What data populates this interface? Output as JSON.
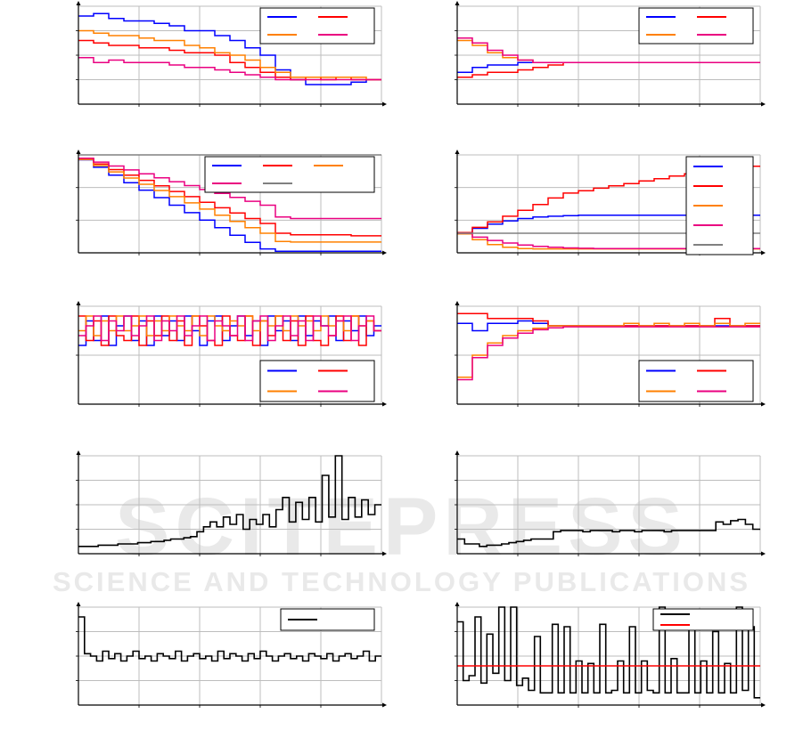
{
  "watermark": {
    "line1": "SCITEPRESS",
    "line2": "SCIENCE AND TECHNOLOGY PUBLICATIONS"
  },
  "chart_data": [
    {
      "type": "line",
      "step": true,
      "xlim": [
        0,
        100
      ],
      "ylim": [
        0,
        4
      ],
      "grid": true,
      "legend": "top-right",
      "series": [
        {
          "color": "#0000ff",
          "values": [
            3.6,
            3.7,
            3.5,
            3.4,
            3.4,
            3.3,
            3.2,
            3.0,
            3.0,
            2.8,
            2.6,
            2.3,
            2.0,
            1.4,
            1.0,
            0.8,
            0.8,
            0.8,
            0.9,
            1.0
          ]
        },
        {
          "color": "#ff0000",
          "values": [
            2.6,
            2.5,
            2.4,
            2.4,
            2.3,
            2.3,
            2.2,
            2.1,
            2.1,
            2.0,
            1.7,
            1.5,
            1.3,
            1.1,
            1.0,
            1.1,
            1.0,
            1.1,
            1.0,
            1.0
          ]
        },
        {
          "color": "#ff8000",
          "values": [
            3.0,
            2.9,
            2.8,
            2.8,
            2.7,
            2.6,
            2.6,
            2.4,
            2.3,
            2.1,
            2.0,
            1.8,
            1.5,
            1.3,
            1.1,
            1.1,
            1.1,
            1.1,
            1.1,
            1.0
          ]
        },
        {
          "color": "#ea0080",
          "values": [
            1.9,
            1.7,
            1.8,
            1.7,
            1.7,
            1.7,
            1.6,
            1.5,
            1.5,
            1.4,
            1.3,
            1.2,
            1.1,
            1.0,
            1.0,
            1.0,
            1.0,
            1.0,
            1.0,
            1.0
          ]
        }
      ]
    },
    {
      "type": "line",
      "step": true,
      "xlim": [
        0,
        100
      ],
      "ylim": [
        0,
        4
      ],
      "grid": true,
      "legend": "top-right",
      "series": [
        {
          "color": "#0000ff",
          "values": [
            1.3,
            1.5,
            1.6,
            1.6,
            1.7,
            1.7,
            1.7,
            1.7,
            1.7,
            1.7,
            1.7,
            1.7,
            1.7,
            1.7,
            1.7,
            1.7,
            1.7,
            1.7,
            1.7,
            1.7
          ]
        },
        {
          "color": "#ff0000",
          "values": [
            1.1,
            1.2,
            1.3,
            1.3,
            1.4,
            1.5,
            1.6,
            1.7,
            1.7,
            1.7,
            1.7,
            1.7,
            1.7,
            1.7,
            1.7,
            1.7,
            1.7,
            1.7,
            1.7,
            1.7
          ]
        },
        {
          "color": "#ff8000",
          "values": [
            2.6,
            2.4,
            2.1,
            1.9,
            1.8,
            1.7,
            1.7,
            1.7,
            1.7,
            1.7,
            1.7,
            1.7,
            1.7,
            1.7,
            1.7,
            1.7,
            1.7,
            1.7,
            1.7,
            1.7
          ]
        },
        {
          "color": "#ea0080",
          "values": [
            2.7,
            2.5,
            2.2,
            2.0,
            1.8,
            1.7,
            1.7,
            1.7,
            1.7,
            1.7,
            1.7,
            1.7,
            1.7,
            1.7,
            1.7,
            1.7,
            1.7,
            1.7,
            1.7,
            1.7
          ]
        }
      ]
    },
    {
      "type": "line",
      "step": true,
      "xlim": [
        0,
        100
      ],
      "ylim": [
        0,
        3
      ],
      "grid": true,
      "legend": "top-right",
      "series": [
        {
          "color": "#0000ff",
          "values": [
            2.85,
            2.62,
            2.38,
            2.15,
            1.92,
            1.69,
            1.46,
            1.23,
            1.0,
            0.77,
            0.54,
            0.32,
            0.12,
            0.05,
            0.05,
            0.05,
            0.05,
            0.05,
            0.05,
            0.05
          ]
        },
        {
          "color": "#ff0000",
          "values": [
            2.88,
            2.72,
            2.55,
            2.38,
            2.22,
            2.05,
            1.88,
            1.72,
            1.55,
            1.38,
            1.22,
            1.05,
            0.9,
            0.6,
            0.55,
            0.55,
            0.55,
            0.55,
            0.52,
            0.52
          ]
        },
        {
          "color": "#ff8000",
          "values": [
            2.86,
            2.67,
            2.48,
            2.29,
            2.1,
            1.91,
            1.72,
            1.53,
            1.34,
            1.15,
            0.96,
            0.77,
            0.6,
            0.35,
            0.33,
            0.33,
            0.33,
            0.33,
            0.33,
            0.33
          ]
        },
        {
          "color": "#ea0080",
          "values": [
            2.9,
            2.78,
            2.66,
            2.54,
            2.42,
            2.3,
            2.18,
            2.06,
            1.94,
            1.82,
            1.7,
            1.58,
            1.46,
            1.1,
            1.05,
            1.05,
            1.05,
            1.05,
            1.05,
            1.05
          ]
        },
        {
          "color": "#808080",
          "values": [
            3.0,
            3.0,
            3.0,
            3.0,
            3.0,
            3.0,
            3.0,
            3.0,
            3.0,
            3.0,
            3.0,
            3.0,
            3.0,
            3.0,
            3.0,
            3.0,
            3.0,
            3.0,
            3.0,
            3.0
          ]
        }
      ]
    },
    {
      "type": "line",
      "step": true,
      "xlim": [
        0,
        100
      ],
      "ylim": [
        0,
        3
      ],
      "grid": true,
      "legend": "top-right",
      "series": [
        {
          "color": "#0000ff",
          "values": [
            0.62,
            0.75,
            0.88,
            0.98,
            1.05,
            1.1,
            1.12,
            1.14,
            1.15,
            1.15,
            1.15,
            1.15,
            1.15,
            1.15,
            1.15,
            1.15,
            1.15,
            1.15,
            1.15,
            1.15
          ]
        },
        {
          "color": "#ff0000",
          "values": [
            0.62,
            0.78,
            0.95,
            1.12,
            1.3,
            1.48,
            1.68,
            1.83,
            1.9,
            1.98,
            2.05,
            2.12,
            2.2,
            2.27,
            2.35,
            2.42,
            2.5,
            2.57,
            2.62,
            2.65
          ]
        },
        {
          "color": "#ff8000",
          "values": [
            0.58,
            0.4,
            0.25,
            0.17,
            0.13,
            0.12,
            0.12,
            0.12,
            0.12,
            0.12,
            0.12,
            0.12,
            0.12,
            0.12,
            0.12,
            0.12,
            0.12,
            0.12,
            0.12,
            0.12
          ]
        },
        {
          "color": "#ea0080",
          "values": [
            0.6,
            0.48,
            0.38,
            0.3,
            0.24,
            0.2,
            0.17,
            0.15,
            0.14,
            0.13,
            0.13,
            0.13,
            0.13,
            0.13,
            0.13,
            0.13,
            0.13,
            0.13,
            0.13,
            0.13
          ]
        },
        {
          "color": "#808080",
          "values": [
            0.6,
            0.6,
            0.6,
            0.6,
            0.6,
            0.6,
            0.6,
            0.6,
            0.6,
            0.6,
            0.6,
            0.6,
            0.6,
            0.6,
            0.6,
            0.6,
            0.6,
            0.6,
            0.6,
            0.6
          ]
        }
      ]
    },
    {
      "type": "line",
      "step": true,
      "xlim": [
        0,
        100
      ],
      "ylim": [
        0,
        2
      ],
      "grid": true,
      "legend": "bottom-right",
      "series": [
        {
          "color": "#0000ff",
          "values": [
            1.2,
            1.7,
            1.3,
            1.8,
            1.2,
            1.6,
            1.8,
            1.3,
            1.7,
            1.2,
            1.8,
            1.4,
            1.7,
            1.3,
            1.8,
            1.5,
            1.2,
            1.7,
            1.8,
            1.3,
            1.6,
            1.8,
            1.4,
            1.7,
            1.2,
            1.8,
            1.5,
            1.7,
            1.3,
            1.8,
            1.4,
            1.7,
            1.6,
            1.8,
            1.3,
            1.7,
            1.5,
            1.8,
            1.4,
            1.6
          ]
        },
        {
          "color": "#ff0000",
          "values": [
            1.8,
            1.3,
            1.7,
            1.2,
            1.8,
            1.4,
            1.3,
            1.8,
            1.2,
            1.7,
            1.4,
            1.8,
            1.3,
            1.7,
            1.2,
            1.8,
            1.6,
            1.3,
            1.2,
            1.8,
            1.4,
            1.3,
            1.8,
            1.2,
            1.7,
            1.4,
            1.8,
            1.3,
            1.7,
            1.2,
            1.8,
            1.3,
            1.2,
            1.4,
            1.8,
            1.3,
            1.8,
            1.2,
            1.7,
            1.5
          ]
        },
        {
          "color": "#ff8000",
          "values": [
            1.5,
            1.8,
            1.4,
            1.7,
            1.5,
            1.8,
            1.5,
            1.6,
            1.8,
            1.4,
            1.7,
            1.5,
            1.8,
            1.6,
            1.5,
            1.8,
            1.4,
            1.8,
            1.6,
            1.5,
            1.7,
            1.6,
            1.8,
            1.5,
            1.7,
            1.6,
            1.8,
            1.5,
            1.8,
            1.6,
            1.7,
            1.5,
            1.8,
            1.6,
            1.7,
            1.5,
            1.8,
            1.6,
            1.7,
            1.5
          ]
        },
        {
          "color": "#ea0080",
          "values": [
            1.4,
            1.6,
            1.8,
            1.3,
            1.7,
            1.5,
            1.8,
            1.4,
            1.6,
            1.8,
            1.3,
            1.7,
            1.5,
            1.8,
            1.4,
            1.6,
            1.8,
            1.3,
            1.7,
            1.6,
            1.4,
            1.8,
            1.3,
            1.7,
            1.8,
            1.3,
            1.6,
            1.8,
            1.4,
            1.7,
            1.3,
            1.8,
            1.6,
            1.4,
            1.7,
            1.8,
            1.3,
            1.6,
            1.8,
            1.5
          ]
        }
      ]
    },
    {
      "type": "line",
      "step": true,
      "xlim": [
        0,
        100
      ],
      "ylim": [
        0,
        2
      ],
      "grid": true,
      "legend": "bottom-right",
      "series": [
        {
          "color": "#0000ff",
          "values": [
            1.65,
            1.5,
            1.65,
            1.65,
            1.7,
            1.65,
            1.6,
            1.6,
            1.6,
            1.6,
            1.6,
            1.6,
            1.6,
            1.6,
            1.6,
            1.6,
            1.6,
            1.6,
            1.6,
            1.6
          ]
        },
        {
          "color": "#ff0000",
          "values": [
            1.85,
            1.85,
            1.75,
            1.75,
            1.75,
            1.7,
            1.6,
            1.6,
            1.6,
            1.6,
            1.6,
            1.6,
            1.6,
            1.6,
            1.6,
            1.6,
            1.6,
            1.75,
            1.6,
            1.6
          ]
        },
        {
          "color": "#ff8000",
          "values": [
            0.55,
            1.0,
            1.25,
            1.4,
            1.5,
            1.55,
            1.6,
            1.6,
            1.6,
            1.6,
            1.6,
            1.65,
            1.6,
            1.65,
            1.6,
            1.65,
            1.6,
            1.65,
            1.6,
            1.65
          ]
        },
        {
          "color": "#ea0080",
          "values": [
            0.5,
            0.95,
            1.2,
            1.35,
            1.45,
            1.52,
            1.56,
            1.58,
            1.58,
            1.58,
            1.58,
            1.58,
            1.58,
            1.58,
            1.58,
            1.58,
            1.58,
            1.58,
            1.58,
            1.58
          ]
        }
      ]
    },
    {
      "type": "line",
      "step": true,
      "xlim": [
        0,
        100
      ],
      "ylim": [
        0,
        4
      ],
      "grid": true,
      "series": [
        {
          "color": "#000000",
          "values": [
            0.3,
            0.3,
            0.3,
            0.35,
            0.35,
            0.35,
            0.4,
            0.4,
            0.4,
            0.45,
            0.45,
            0.5,
            0.5,
            0.55,
            0.6,
            0.6,
            0.65,
            0.7,
            0.9,
            1.1,
            1.3,
            1.1,
            1.5,
            1.2,
            1.6,
            1.0,
            1.4,
            1.2,
            1.6,
            1.1,
            1.8,
            2.3,
            1.3,
            2.1,
            1.4,
            2.3,
            1.3,
            3.2,
            1.5,
            4.0,
            1.4,
            2.3,
            1.5,
            2.2,
            1.6,
            2.0
          ]
        }
      ]
    },
    {
      "type": "line",
      "step": true,
      "xlim": [
        0,
        100
      ],
      "ylim": [
        0,
        4
      ],
      "grid": true,
      "series": [
        {
          "color": "#000000",
          "values": [
            0.6,
            0.4,
            0.4,
            0.3,
            0.35,
            0.35,
            0.4,
            0.45,
            0.5,
            0.55,
            0.6,
            0.6,
            0.6,
            0.9,
            0.95,
            0.95,
            0.95,
            0.9,
            0.95,
            0.95,
            0.95,
            0.9,
            0.95,
            0.95,
            0.9,
            0.95,
            0.95,
            0.95,
            0.9,
            0.95,
            0.95,
            0.95,
            0.95,
            0.95,
            0.95,
            1.3,
            1.2,
            1.35,
            1.4,
            1.2,
            1.0
          ]
        }
      ]
    },
    {
      "type": "line",
      "step": true,
      "xlim": [
        0,
        100
      ],
      "ylim": [
        0,
        4
      ],
      "grid": true,
      "legend": "top-right",
      "series": [
        {
          "color": "#000000",
          "values": [
            3.6,
            2.1,
            2.0,
            1.8,
            2.2,
            1.9,
            2.1,
            1.8,
            2.0,
            2.2,
            1.9,
            2.0,
            1.8,
            2.1,
            2.0,
            1.9,
            2.2,
            1.8,
            2.0,
            2.1,
            1.9,
            2.0,
            1.8,
            2.2,
            1.9,
            2.1,
            2.0,
            1.8,
            2.1,
            1.9,
            2.2,
            2.0,
            1.8,
            2.0,
            2.1,
            1.9,
            2.0,
            1.8,
            2.1,
            2.0,
            1.9,
            2.1,
            1.8,
            2.0,
            2.1,
            1.9,
            2.0,
            2.2,
            1.8,
            2.0
          ]
        }
      ]
    },
    {
      "type": "line",
      "step": true,
      "xlim": [
        0,
        100
      ],
      "ylim": [
        0,
        4
      ],
      "grid": true,
      "legend": "top-right",
      "series": [
        {
          "color": "#000000",
          "values": [
            3.4,
            1.0,
            1.2,
            3.6,
            0.9,
            2.9,
            1.3,
            4.0,
            1.0,
            4.0,
            0.8,
            1.1,
            0.6,
            2.8,
            0.5,
            0.5,
            3.3,
            0.5,
            3.2,
            0.5,
            1.8,
            0.5,
            1.7,
            0.5,
            3.3,
            0.5,
            0.6,
            1.8,
            0.5,
            3.2,
            0.5,
            1.8,
            0.6,
            0.5,
            4.0,
            0.5,
            1.9,
            0.5,
            0.5,
            3.2,
            0.5,
            1.8,
            0.5,
            3.0,
            0.5,
            1.7,
            0.5,
            4.0,
            0.6,
            3.2,
            0.3
          ]
        },
        {
          "color": "#ff0000",
          "values": [
            1.6,
            1.6
          ]
        }
      ]
    }
  ]
}
